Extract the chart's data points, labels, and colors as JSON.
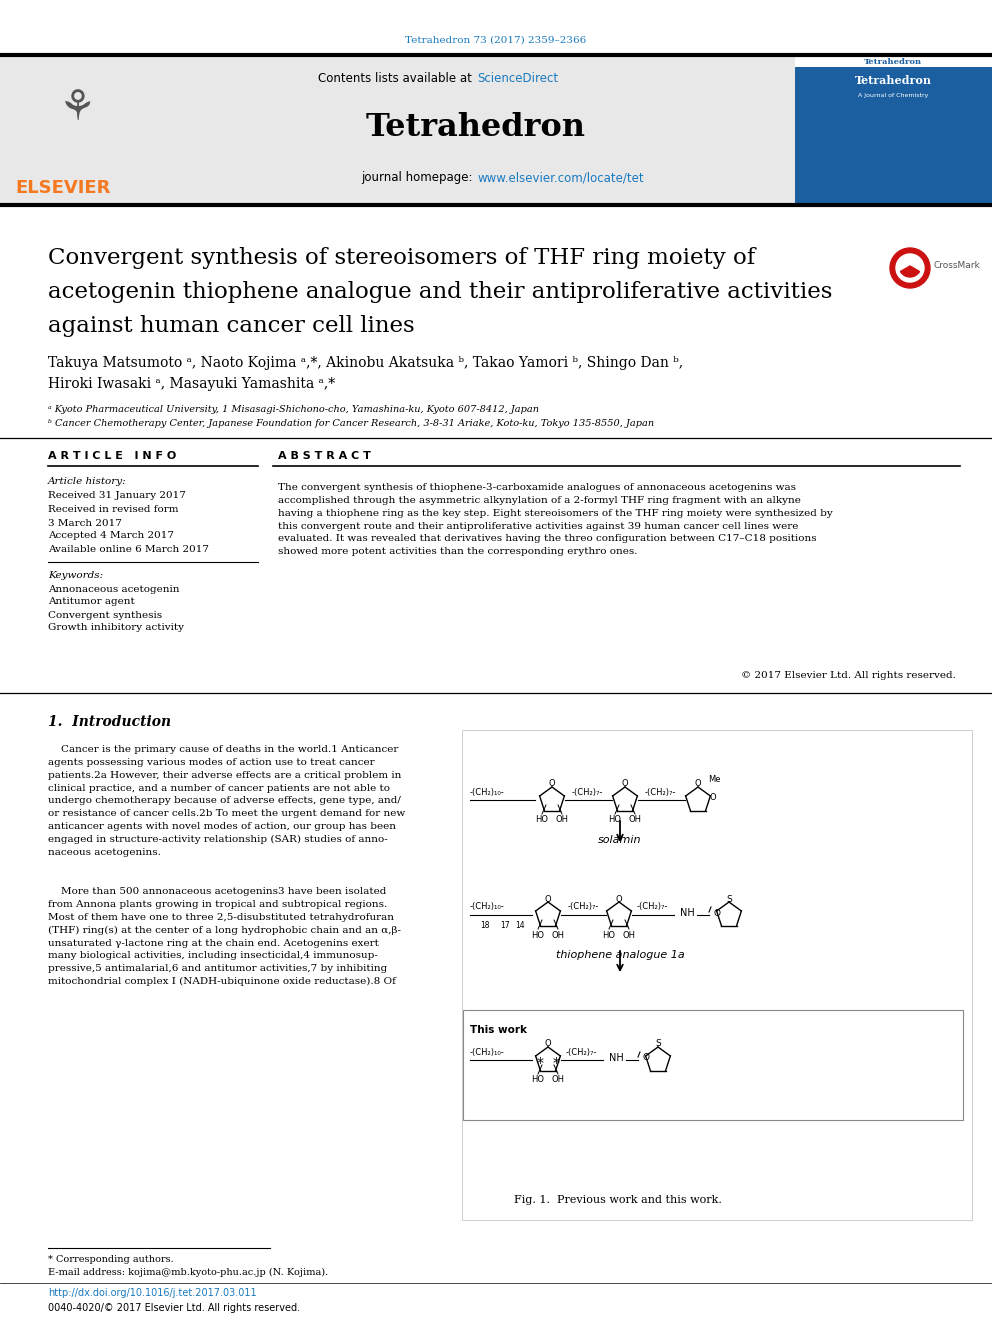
{
  "page_width": 9.92,
  "page_height": 13.23,
  "bg_color": "#ffffff",
  "top_citation": "Tetrahedron 73 (2017) 2359–2366",
  "citation_color": "#1a7abf",
  "journal_name": "Tetrahedron",
  "contents_text": "Contents lists available at ",
  "sciencedirect_text": "ScienceDirect",
  "sciencedirect_color": "#1a7abf",
  "homepage_text": "journal homepage: ",
  "homepage_url": "www.elsevier.com/locate/tet",
  "homepage_url_color": "#1a7abf",
  "article_title_line1": "Convergent synthesis of stereoisomers of THF ring moiety of",
  "article_title_line2": "acetogenin thiophene analogue and their antiproliferative activities",
  "article_title_line3": "against human cancer cell lines",
  "author_line1": "Takuya Matsumoto ᵃ, Naoto Kojima ᵃ,*, Akinobu Akatsuka ᵇ, Takao Yamori ᵇ, Shingo Dan ᵇ,",
  "author_line2": "Hiroki Iwasaki ᵃ, Masayuki Yamashita ᵃ,*",
  "affil_a": "ᵃ Kyoto Pharmaceutical University, 1 Misasagi-Shichono-cho, Yamashina-ku, Kyoto 607-8412, Japan",
  "affil_b": "ᵇ Cancer Chemotherapy Center, Japanese Foundation for Cancer Research, 3-8-31 Ariake, Koto-ku, Tokyo 135-8550, Japan",
  "article_info_header": "A R T I C L E   I N F O",
  "abstract_header": "A B S T R A C T",
  "article_history_label": "Article history:",
  "received": "Received 31 January 2017",
  "received_revised1": "Received in revised form",
  "received_revised2": "3 March 2017",
  "accepted": "Accepted 4 March 2017",
  "available": "Available online 6 March 2017",
  "keywords_label": "Keywords:",
  "keywords": [
    "Annonaceous acetogenin",
    "Antitumor agent",
    "Convergent synthesis",
    "Growth inhibitory activity"
  ],
  "abstract_text": "The convergent synthesis of thiophene-3-carboxamide analogues of annonaceous acetogenins was\naccomplished through the asymmetric alkynylation of a 2-formyl THF ring fragment with an alkyne\nhaving a thiophene ring as the key step. Eight stereoisomers of the THF ring moiety were synthesized by\nthis convergent route and their antiproliferative activities against 39 human cancer cell lines were\nevaluated. It was revealed that derivatives having the threo configuration between C17–C18 positions\nshowed more potent activities than the corresponding erythro ones.",
  "copyright": "© 2017 Elsevier Ltd. All rights reserved.",
  "intro_header": "1.  Introduction",
  "intro_p1": "    Cancer is the primary cause of deaths in the world.1 Anticancer\nagents possessing various modes of action use to treat cancer\npatients.2a However, their adverse effects are a critical problem in\nclinical practice, and a number of cancer patients are not able to\nundergo chemotherapy because of adverse effects, gene type, and/\nor resistance of cancer cells.2b To meet the urgent demand for new\nanticancer agents with novel modes of action, our group has been\nengaged in structure-activity relationship (SAR) studies of anno-\nnaceous acetogenins.",
  "intro_p2": "    More than 500 annonaceous acetogenins3 have been isolated\nfrom Annona plants growing in tropical and subtropical regions.\nMost of them have one to three 2,5-disubstituted tetrahydrofuran\n(THF) ring(s) at the center of a long hydrophobic chain and an α,β-\nunsaturated γ-lactone ring at the chain end. Acetogenins exert\nmany biological activities, including insecticidal,4 immunosup-\npressive,5 antimalarial,6 and antitumor activities,7 by inhibiting\nmitochondrial complex I (NADH-ubiquinone oxide reductase).8 Of",
  "footnote_star": "* Corresponding authors.",
  "footnote_email": "E-mail address: kojima@mb.kyoto-phu.ac.jp (N. Kojima).",
  "footnote_doi": "http://dx.doi.org/10.1016/j.tet.2017.03.011",
  "footnote_issn": "0040-4020/© 2017 Elsevier Ltd. All rights reserved.",
  "doi_color": "#1a7abf",
  "fig1_caption": "Fig. 1.  Previous work and this work.",
  "separator_color": "#000000",
  "elsevier_orange": "#f47920",
  "header_bg": "#e8e8e8"
}
